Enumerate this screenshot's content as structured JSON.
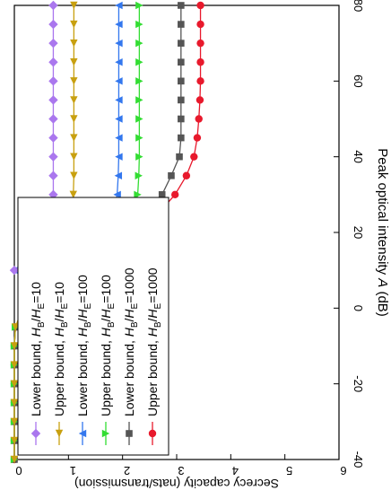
{
  "chart_data": {
    "type": "line",
    "orientation": "rotated-90-cw",
    "xlabel_prefix": "Peak optical intensity ",
    "xlabel_var": "A",
    "xlabel_suffix": " (dB)",
    "ylabel": "Secrecy capacity (nats/transmission)",
    "xlim": [
      -40,
      80
    ],
    "ylim": [
      0,
      6
    ],
    "xticks": [
      -40,
      -20,
      0,
      20,
      40,
      60,
      80
    ],
    "yticks": [
      0,
      1,
      2,
      3,
      4,
      5,
      6
    ],
    "grid": false,
    "legend_position": "bottom-left",
    "series": [
      {
        "name": "Upper bound, HB/HE=1000",
        "label_prefix": "Upper bound, ",
        "ratio_value": "1000",
        "color": "#e8192c",
        "marker": "circle",
        "x": [
          -40,
          -35,
          -30,
          -25,
          -20,
          -15,
          -10,
          -5,
          0,
          5,
          10,
          15,
          20,
          25,
          30,
          35,
          40,
          45,
          50,
          55,
          60,
          65,
          70,
          75,
          80
        ],
        "values": [
          0,
          0,
          0,
          0,
          0,
          0,
          0,
          0.02,
          0.18,
          0.55,
          1.12,
          1.72,
          2.25,
          2.66,
          2.97,
          3.18,
          3.32,
          3.38,
          3.41,
          3.43,
          3.44,
          3.44,
          3.44,
          3.44,
          3.44
        ]
      },
      {
        "name": "Lower bound, HB/HE=1000",
        "label_prefix": "Lower bound, ",
        "ratio_value": "1000",
        "color": "#555555",
        "marker": "square",
        "x": [
          -40,
          -35,
          -30,
          -25,
          -20,
          -15,
          -10,
          -5,
          0,
          5,
          10,
          15,
          20,
          25,
          30,
          35,
          40,
          45,
          50,
          55,
          60,
          65,
          70,
          75,
          80
        ],
        "values": [
          0,
          0,
          0,
          0,
          0,
          0,
          0,
          0.02,
          0.18,
          0.55,
          1.1,
          1.6,
          2.05,
          2.4,
          2.73,
          2.9,
          3.05,
          3.08,
          3.08,
          3.08,
          3.08,
          3.08,
          3.08,
          3.08,
          3.08
        ]
      },
      {
        "name": "Upper bound, HB/HE=100",
        "label_prefix": "Upper bound, ",
        "ratio_value": "100",
        "color": "#33dd33",
        "marker": "triangle-right",
        "x": [
          -40,
          -35,
          -30,
          -25,
          -20,
          -15,
          -10,
          -5,
          0,
          5,
          10,
          15,
          20,
          25,
          30,
          35,
          40,
          45,
          50,
          55,
          60,
          65,
          70,
          75,
          80
        ],
        "values": [
          0,
          0,
          0,
          0,
          0,
          0,
          0,
          0.02,
          0.18,
          0.55,
          1.12,
          1.65,
          1.98,
          2.2,
          2.28,
          2.3,
          2.31,
          2.31,
          2.31,
          2.31,
          2.31,
          2.31,
          2.31,
          2.31,
          2.31
        ]
      },
      {
        "name": "Lower bound, HB/HE=100",
        "label_prefix": "Lower bound, ",
        "ratio_value": "100",
        "color": "#3377ee",
        "marker": "triangle-left",
        "x": [
          10,
          15,
          20,
          25,
          30,
          35,
          40,
          45,
          50,
          55,
          60,
          65,
          70,
          75,
          80
        ],
        "values": [
          0,
          0.95,
          1.55,
          1.82,
          1.9,
          1.92,
          1.93,
          1.93,
          1.93,
          1.93,
          1.93,
          1.93,
          1.93,
          1.93,
          1.93
        ]
      },
      {
        "name": "Upper bound, HB/HE=10",
        "label_prefix": "Upper bound, ",
        "ratio_value": "10",
        "color": "#c8a010",
        "marker": "triangle-down",
        "x": [
          -40,
          -35,
          -30,
          -25,
          -20,
          -15,
          -10,
          -5,
          0,
          5,
          10,
          15,
          20,
          25,
          30,
          35,
          40,
          45,
          50,
          55,
          60,
          65,
          70,
          75,
          80
        ],
        "values": [
          0,
          0,
          0,
          0,
          0,
          0,
          0,
          0.02,
          0.15,
          0.42,
          0.72,
          0.92,
          1.02,
          1.07,
          1.09,
          1.1,
          1.1,
          1.1,
          1.1,
          1.1,
          1.1,
          1.1,
          1.1,
          1.1,
          1.1
        ]
      },
      {
        "name": "Lower bound, HB/HE=10",
        "label_prefix": "Lower bound, ",
        "ratio_value": "10",
        "color": "#aa77ee",
        "marker": "diamond",
        "x": [
          10,
          15,
          20,
          25,
          30,
          35,
          40,
          45,
          50,
          55,
          60,
          65,
          70,
          75,
          80
        ],
        "values": [
          0,
          0.55,
          0.65,
          0.7,
          0.72,
          0.72,
          0.72,
          0.72,
          0.72,
          0.72,
          0.72,
          0.72,
          0.72,
          0.72,
          0.72
        ]
      }
    ]
  }
}
